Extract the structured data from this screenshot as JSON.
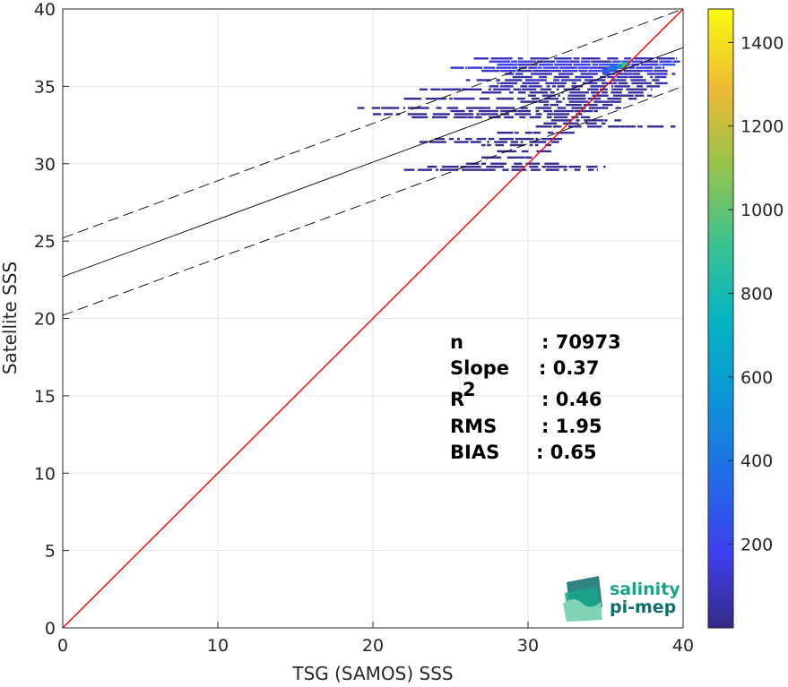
{
  "chart_data": {
    "type": "heatmap",
    "xlabel": "TSG (SAMOS) SSS",
    "ylabel": "Satellite SSS",
    "xlim": [
      0,
      40
    ],
    "ylim": [
      0,
      40
    ],
    "xticks": [
      "0",
      "10",
      "20",
      "30",
      "40"
    ],
    "yticks": [
      "0",
      "5",
      "10",
      "15",
      "20",
      "25",
      "30",
      "35",
      "40"
    ],
    "grid": true,
    "colorbar": {
      "range": [
        0,
        1480
      ],
      "ticks": [
        "200",
        "400",
        "600",
        "800",
        "1000",
        "1200",
        "1400"
      ],
      "tick_values": [
        200,
        400,
        600,
        800,
        1000,
        1200,
        1400
      ],
      "colormap": "parula"
    },
    "lines": [
      {
        "kind": "identity",
        "color": "#ff0000",
        "intercept": 0,
        "slope": 1
      },
      {
        "kind": "fit",
        "color": "#000000",
        "style": "solid",
        "intercept": 22.7,
        "slope": 0.37
      },
      {
        "kind": "fit-upper",
        "color": "#000000",
        "style": "dashed",
        "intercept": 25.2,
        "slope": 0.37
      },
      {
        "kind": "fit-lower",
        "color": "#000000",
        "style": "dashed",
        "intercept": 20.2,
        "slope": 0.37
      }
    ],
    "density_rows": [
      {
        "y": 36.8,
        "x0": 26.5,
        "x1": 39.6,
        "density": 80
      },
      {
        "y": 36.6,
        "x0": 27.5,
        "x1": 39.8,
        "density": 150
      },
      {
        "y": 36.4,
        "x0": 28.0,
        "x1": 39.5,
        "density": 220
      },
      {
        "y": 36.2,
        "x0": 25.0,
        "x1": 38.8,
        "density": 160
      },
      {
        "y": 36.0,
        "x0": 27.0,
        "x1": 39.0,
        "density": 120
      },
      {
        "y": 35.8,
        "x0": 28.5,
        "x1": 39.5,
        "density": 90
      },
      {
        "y": 35.6,
        "x0": 29.0,
        "x1": 39.2,
        "density": 80
      },
      {
        "y": 35.4,
        "x0": 26.0,
        "x1": 38.5,
        "density": 70
      },
      {
        "y": 35.2,
        "x0": 28.0,
        "x1": 39.0,
        "density": 60
      },
      {
        "y": 35.0,
        "x0": 27.5,
        "x1": 38.5,
        "density": 60
      },
      {
        "y": 34.8,
        "x0": 23.0,
        "x1": 38.0,
        "density": 50
      },
      {
        "y": 34.6,
        "x0": 27.0,
        "x1": 37.5,
        "density": 45
      },
      {
        "y": 34.4,
        "x0": 30.0,
        "x1": 38.0,
        "density": 50
      },
      {
        "y": 34.2,
        "x0": 22.0,
        "x1": 37.0,
        "density": 40
      },
      {
        "y": 34.0,
        "x0": 29.5,
        "x1": 36.0,
        "density": 40
      },
      {
        "y": 33.8,
        "x0": 31.0,
        "x1": 35.5,
        "density": 35
      },
      {
        "y": 33.6,
        "x0": 19.0,
        "x1": 36.0,
        "density": 30
      },
      {
        "y": 33.4,
        "x0": 25.0,
        "x1": 34.5,
        "density": 30
      },
      {
        "y": 33.2,
        "x0": 20.0,
        "x1": 33.5,
        "density": 25
      },
      {
        "y": 33.0,
        "x0": 22.5,
        "x1": 34.0,
        "density": 25
      },
      {
        "y": 32.8,
        "x0": 31.5,
        "x1": 36.0,
        "density": 30
      },
      {
        "y": 32.6,
        "x0": 31.0,
        "x1": 35.0,
        "density": 25
      },
      {
        "y": 32.4,
        "x0": 30.5,
        "x1": 39.5,
        "density": 25
      },
      {
        "y": 32.0,
        "x0": 28.0,
        "x1": 33.0,
        "density": 20
      },
      {
        "y": 31.6,
        "x0": 24.0,
        "x1": 32.5,
        "density": 20
      },
      {
        "y": 31.4,
        "x0": 23.0,
        "x1": 32.0,
        "density": 15
      },
      {
        "y": 31.2,
        "x0": 27.0,
        "x1": 31.5,
        "density": 15
      },
      {
        "y": 30.8,
        "x0": 28.0,
        "x1": 31.5,
        "density": 15
      },
      {
        "y": 30.4,
        "x0": 27.0,
        "x1": 30.5,
        "density": 15
      },
      {
        "y": 30.0,
        "x0": 26.0,
        "x1": 32.0,
        "density": 15
      },
      {
        "y": 29.8,
        "x0": 23.5,
        "x1": 35.0,
        "density": 20
      },
      {
        "y": 29.6,
        "x0": 22.0,
        "x1": 34.5,
        "density": 15
      }
    ],
    "hotspots": [
      {
        "x": 36.0,
        "y": 36.3,
        "density": 600
      },
      {
        "x": 36.3,
        "y": 36.4,
        "density": 900
      },
      {
        "x": 35.5,
        "y": 36.2,
        "density": 400
      },
      {
        "x": 35.0,
        "y": 36.0,
        "density": 300
      }
    ],
    "annotations": [
      {
        "label": "n",
        "value": ": 70973"
      },
      {
        "label": "Slope",
        "value": ": 0.37"
      },
      {
        "label": "R",
        "sup": "2",
        "value": ": 0.46"
      },
      {
        "label": "RMS",
        "value": ": 1.95"
      },
      {
        "label": "BIAS",
        "value": ": 0.65"
      }
    ]
  },
  "logo": {
    "line1": "salinity",
    "line2": "pi-mep",
    "colors": [
      "#17a589",
      "#0e6f6e",
      "#7fd4b5"
    ]
  }
}
